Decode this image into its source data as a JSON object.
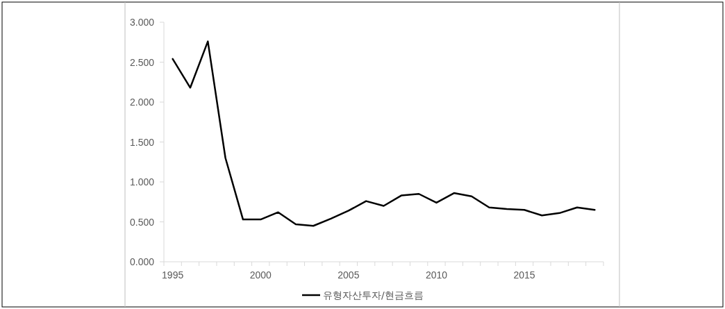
{
  "chart_data": {
    "type": "line",
    "categories": [
      "1995",
      null,
      null,
      null,
      null,
      "2000",
      null,
      null,
      null,
      null,
      "2005",
      null,
      null,
      null,
      null,
      "2010",
      null,
      null,
      null,
      null,
      "2015",
      null,
      null,
      null,
      null
    ],
    "series": [
      {
        "name": "유형자산투자/현금흐름",
        "color": "#000000",
        "values": [
          2.54,
          2.18,
          2.76,
          1.3,
          0.53,
          0.53,
          0.62,
          0.47,
          0.45,
          0.54,
          0.64,
          0.76,
          0.7,
          0.83,
          0.85,
          0.74,
          0.86,
          0.82,
          0.68,
          0.66,
          0.65,
          0.58,
          0.61,
          0.68,
          0.65
        ]
      }
    ],
    "ylim": [
      0,
      3
    ],
    "yticks": [
      {
        "value": 0,
        "label": "0.000"
      },
      {
        "value": 0.5,
        "label": "0.500"
      },
      {
        "value": 1,
        "label": "1.000"
      },
      {
        "value": 1.5,
        "label": "1.500"
      },
      {
        "value": 2,
        "label": "2.000"
      },
      {
        "value": 2.5,
        "label": "2.500"
      },
      {
        "value": 3,
        "label": "3.000"
      }
    ],
    "legend": "bottom",
    "marker": "none",
    "line_style": "solid"
  }
}
